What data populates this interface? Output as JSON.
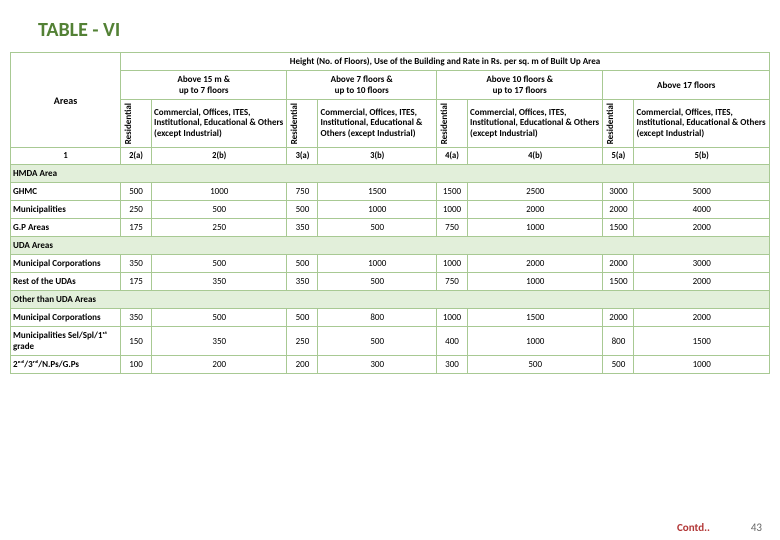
{
  "title": "TABLE - VI",
  "header_main": "Height (No. of Floors), Use of the Building and Rate in Rs. per sq. m of Built Up Area",
  "areas_label": "Areas",
  "col_groups": [
    "Above 15 m &\nup to 7 floors",
    "Above 7 floors  &\nup to 10 floors",
    "Above 10 floors &\nup to 17 floors",
    "Above 17 floors"
  ],
  "res_label": "Residential",
  "desc": [
    "Commercial, Offices, ITES, Institutional, Educational & Others (except Industrial)",
    "Commercial, Offices, ITES, Institutional, Educational & Others (except Industrial)",
    "Commercial, Offices, ITES, Institutional, Educational & Others (except Industrial)",
    "Commercial, Offices, ITES, Institutional, Educational & Others (except Industrial)"
  ],
  "idrow": [
    "1",
    "2(a)",
    "2(b)",
    "3(a)",
    "3(b)",
    "4(a)",
    "4(b)",
    "5(a)",
    "5(b)"
  ],
  "bands": {
    "b1": "HMDA Area",
    "b2": "UDA Areas",
    "b3": "Other than UDA Areas"
  },
  "rows_b1": [
    {
      "label": "GHMC",
      "v": [
        "500",
        "1000",
        "750",
        "1500",
        "1500",
        "2500",
        "3000",
        "5000"
      ]
    },
    {
      "label": "Municipalities",
      "v": [
        "250",
        "500",
        "500",
        "1000",
        "1000",
        "2000",
        "2000",
        "4000"
      ]
    },
    {
      "label": "G.P Areas",
      "v": [
        "175",
        "250",
        "350",
        "500",
        "750",
        "1000",
        "1500",
        "2000"
      ]
    }
  ],
  "rows_b2": [
    {
      "label": "Municipal Corporations",
      "v": [
        "350",
        "500",
        "500",
        "1000",
        "1000",
        "2000",
        "2000",
        "3000"
      ]
    },
    {
      "label": "Rest of the UDAs",
      "v": [
        "175",
        "350",
        "350",
        "500",
        "750",
        "1000",
        "1500",
        "2000"
      ]
    }
  ],
  "rows_b3": [
    {
      "label": "Municipal Corporations",
      "v": [
        "350",
        "500",
        "500",
        "800",
        "1000",
        "1500",
        "2000",
        "2000"
      ]
    },
    {
      "label": "Municipalities Sel/Spl/1ˢᵗ grade",
      "v": [
        "150",
        "350",
        "250",
        "500",
        "400",
        "1000",
        "800",
        "1500"
      ]
    },
    {
      "label": "2ⁿᵈ/3ʳᵈ/N.Ps/G.Ps",
      "v": [
        "100",
        "200",
        "200",
        "300",
        "300",
        "500",
        "500",
        "1000"
      ]
    }
  ],
  "contd": "Contd..",
  "pagenum": "43",
  "colors": {
    "title": "#538135",
    "border": "#a8c993",
    "band_bg": "#e2efda",
    "contd": "#b23737"
  }
}
